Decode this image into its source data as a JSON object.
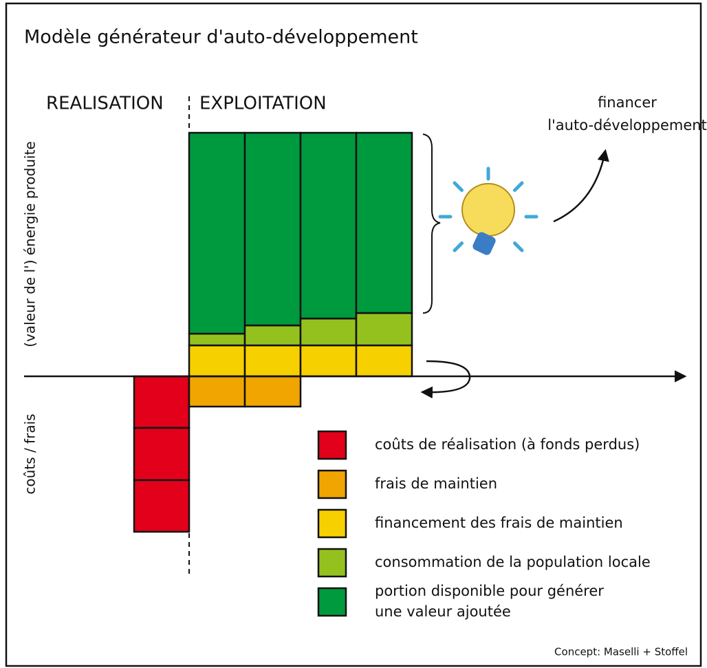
{
  "title": "Modèle générateur d'auto-développement",
  "phases": [
    "REALISATION",
    "EXPLOITATION"
  ],
  "annotation": [
    "financer",
    "l'auto-développement"
  ],
  "axis_labels": {
    "top": "(valeur de l') énergie produite",
    "bottom": "coûts / frais"
  },
  "legend": [
    {
      "lines": [
        "coûts de réalisation (à fonds perdus)"
      ],
      "color": "#e2001a"
    },
    {
      "lines": [
        "frais de maintien"
      ],
      "color": "#f0a500"
    },
    {
      "lines": [
        "financement des frais de maintien"
      ],
      "color": "#f7d000"
    },
    {
      "lines": [
        "consommation de la population locale"
      ],
      "color": "#95c11f"
    },
    {
      "lines": [
        "portion disponible pour générer",
        "une valeur ajoutée"
      ],
      "color": "#009a3e"
    }
  ],
  "credit": "Concept: Maselli + Stoffel"
}
